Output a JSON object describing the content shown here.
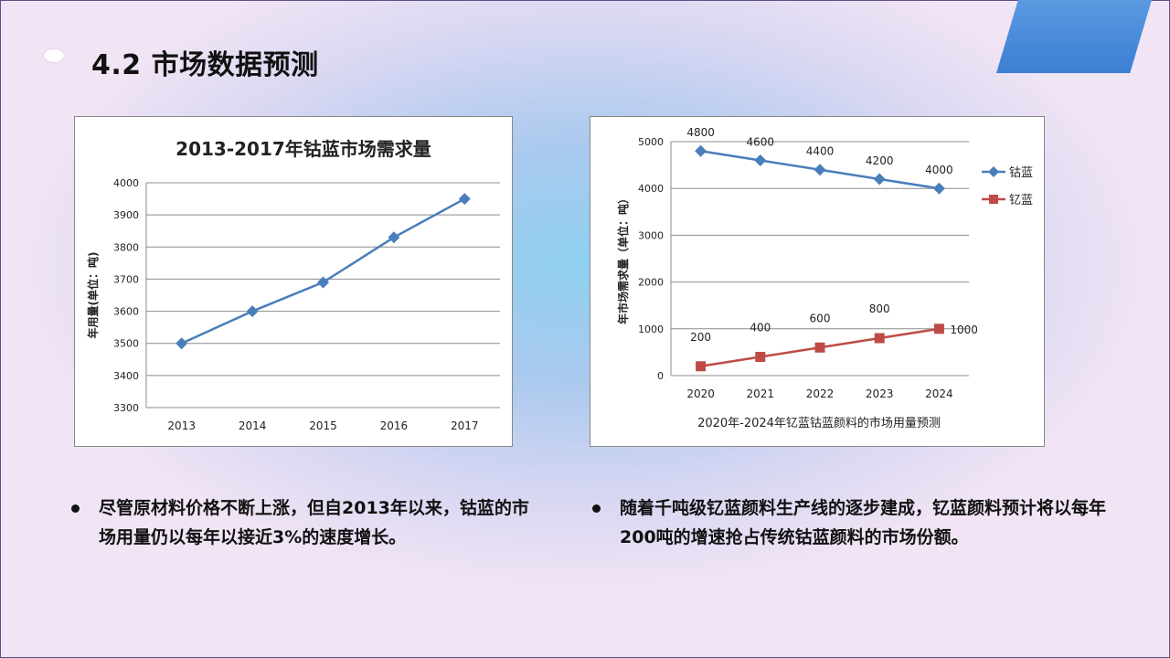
{
  "title": "4.2 市场数据预测",
  "bullets": [
    "尽管原材料价格不断上涨，但自2013年以来，钴蓝的市场用量仍以每年以接近3%的速度增长。",
    "随着千吨级钇蓝颜料生产线的逐步建成，钇蓝颜料预计将以每年200吨的增速抢占传统钴蓝颜料的市场份额。"
  ],
  "chart_data": [
    {
      "type": "line",
      "title": "2013-2017年钴蓝市场需求量",
      "xlabel": "",
      "ylabel": "年用量(单位：吨)",
      "categories": [
        "2013",
        "2014",
        "2015",
        "2016",
        "2017"
      ],
      "series": [
        {
          "values": [
            3500,
            3600,
            3690,
            3830,
            3950
          ],
          "color": "#4a7ebb"
        }
      ],
      "ylim": [
        3300,
        4000
      ],
      "yticks": [
        3300,
        3400,
        3500,
        3600,
        3700,
        3800,
        3900,
        4000
      ],
      "grid": true,
      "legend": "none"
    },
    {
      "type": "line",
      "title": "2020年-2024年钇蓝钴蓝颜料的市场用量预测",
      "xlabel": "",
      "ylabel": "年市场需求量（单位：吨）",
      "categories": [
        "2020",
        "2021",
        "2022",
        "2023",
        "2024"
      ],
      "series": [
        {
          "name": "钴蓝",
          "values": [
            4800,
            4600,
            4400,
            4200,
            4000
          ],
          "color": "#4a7ebb",
          "marker": "diamond"
        },
        {
          "name": "钇蓝",
          "values": [
            200,
            400,
            600,
            800,
            1000
          ],
          "color": "#be4b48",
          "marker": "square"
        }
      ],
      "ylim": [
        0,
        5000
      ],
      "yticks": [
        0,
        1000,
        2000,
        3000,
        4000,
        5000
      ],
      "grid": true,
      "legend": "right",
      "data_labels": true
    }
  ]
}
